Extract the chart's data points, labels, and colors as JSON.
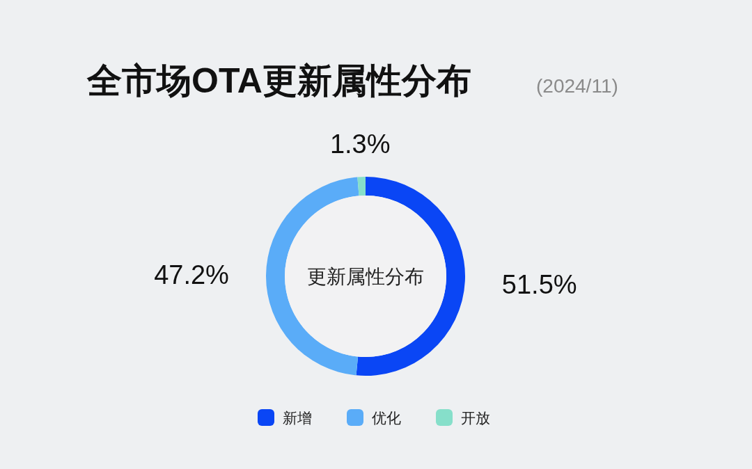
{
  "chart_data": {
    "type": "donut",
    "title": "全市场OTA更新属性分布",
    "subtitle": "(2024/11)",
    "categories": [
      "新增",
      "优化",
      "开放"
    ],
    "values": [
      51.5,
      47.2,
      1.3
    ],
    "colors": [
      "#0a46f5",
      "#5aacf8",
      "#86dfca"
    ],
    "data_labels": true,
    "value_labels": [
      "51.5%",
      "47.2%",
      "1.3%"
    ],
    "annotations": [
      "更新属性分布"
    ],
    "legend": "bottom"
  }
}
